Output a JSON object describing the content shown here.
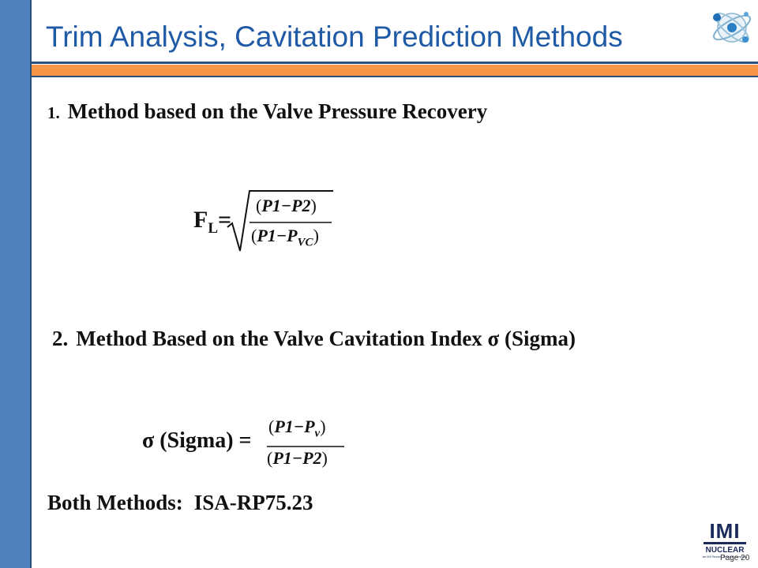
{
  "slide": {
    "title": "Trim Analysis, Cavitation Prediction Methods",
    "page_label": "Page 20"
  },
  "method1": {
    "number": "1.",
    "heading": "Method based on the Valve Pressure Recovery",
    "equation": {
      "lhs_base": "F",
      "lhs_sub": "L",
      "equals": "=",
      "numerator": "P1−P2",
      "denominator_base": "P1−P",
      "denominator_sub": "VC"
    }
  },
  "method2": {
    "number": "2.",
    "heading": "Method Based on the Valve Cavitation Index σ (Sigma)",
    "equation": {
      "lhs": "σ (Sigma) =",
      "numerator_base": "P1−P",
      "numerator_sub": "v",
      "denominator": "P1−P2"
    }
  },
  "footer": {
    "both_label": "Both Methods:",
    "standard": "ISA-RP75.23"
  },
  "logo": {
    "brand": "IMI",
    "division": "NUCLEAR",
    "tagline": "an IMI Severe Service company"
  },
  "colors": {
    "left_bar": "#4f81bd",
    "title_text": "#1f5aa6",
    "rule_orange": "#f79646",
    "rule_blue": "#2c4f7c"
  },
  "icons": [
    "globe-icon"
  ]
}
